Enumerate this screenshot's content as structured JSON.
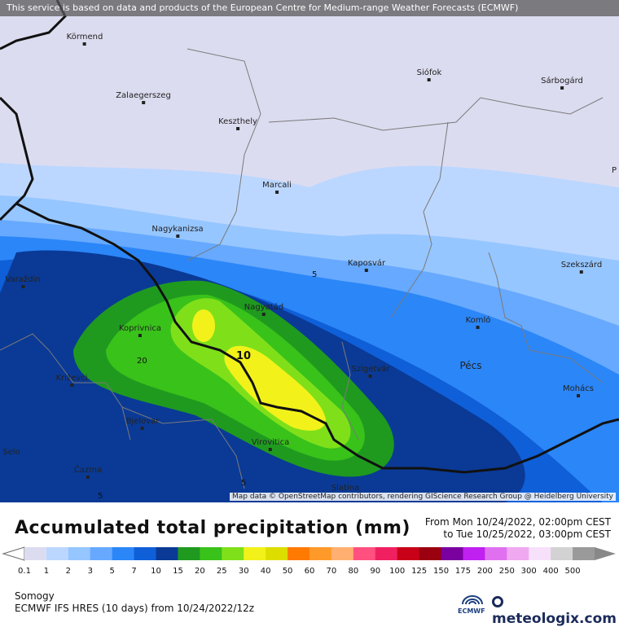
{
  "map": {
    "banner": "This service is based on data and products of the European Centre for Medium-range Weather Forecasts (ECMWF)",
    "attribution": "Map data © OpenStreetMap contributors, rendering GIScience Research Group @ Heidelberg University",
    "cities": [
      {
        "name": "Körmend"
      },
      {
        "name": "Siófok"
      },
      {
        "name": "Sárbogárd"
      },
      {
        "name": "Zalaegerszeg"
      },
      {
        "name": "Keszthely"
      },
      {
        "name": "Marcali"
      },
      {
        "name": "Nagykanizsa"
      },
      {
        "name": "Kaposvár"
      },
      {
        "name": "Szekszárd"
      },
      {
        "name": "Varaždin"
      },
      {
        "name": "Nagyatád"
      },
      {
        "name": "Koprivnica"
      },
      {
        "name": "Komló"
      },
      {
        "name": "Pécs"
      },
      {
        "name": "Szigetvár"
      },
      {
        "name": "Križevci"
      },
      {
        "name": "Mohács"
      },
      {
        "name": "Bjelovar"
      },
      {
        "name": "Virovitica"
      },
      {
        "name": "Selo"
      },
      {
        "name": "Čazma"
      },
      {
        "name": "Slatina"
      },
      {
        "name": "P"
      }
    ],
    "contour_labels": [
      "5",
      "10",
      "20",
      "5",
      "5"
    ]
  },
  "title": "Accumulated total precipitation (mm)",
  "period": {
    "from": "From Mon 10/24/2022, 02:00pm CEST",
    "to": "to Tue 10/25/2022, 03:00pm CEST"
  },
  "legend": {
    "ticks": [
      "0.1",
      "1",
      "2",
      "3",
      "5",
      "7",
      "10",
      "15",
      "20",
      "25",
      "30",
      "40",
      "50",
      "60",
      "70",
      "80",
      "90",
      "100",
      "125",
      "150",
      "175",
      "200",
      "250",
      "300",
      "400",
      "500"
    ],
    "colors": [
      "#dcdcf0",
      "#bcd7ff",
      "#96c6ff",
      "#66a9ff",
      "#2b86f8",
      "#0f5fd8",
      "#0a3a96",
      "#1f9a1f",
      "#39c21a",
      "#7fe01a",
      "#f2f21a",
      "#dddd00",
      "#ff7a00",
      "#ff9a2a",
      "#ffb070",
      "#ff5080",
      "#f02060",
      "#c80018",
      "#9a0010",
      "#7a00a0",
      "#c020f0",
      "#e070f0",
      "#f0a8f0",
      "#f6e0fa",
      "#d2d2d2",
      "#9a9a9a"
    ]
  },
  "region": "Somogy",
  "model": "ECMWF IFS HRES (10 days) from 10/24/2022/12z",
  "logos": {
    "ecmwf": "ECMWF",
    "meteologix": "meteologix.com"
  }
}
